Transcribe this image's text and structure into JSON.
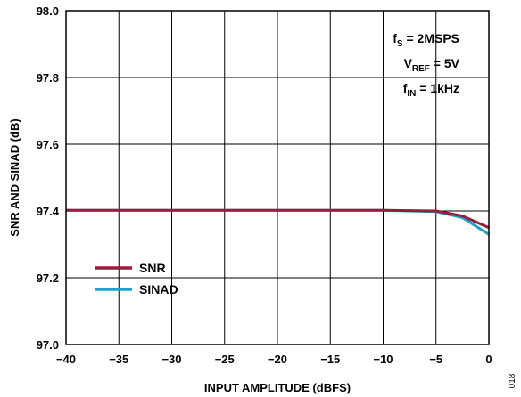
{
  "chart_data": {
    "type": "line",
    "xlabel": "INPUT AMPLITUDE (dBFS)",
    "ylabel": "SNR AND SINAD (dB)",
    "xlim": [
      -40,
      0
    ],
    "ylim": [
      97.0,
      98.0
    ],
    "x_ticks": [
      "−40",
      "−35",
      "−30",
      "−25",
      "−20",
      "−15",
      "−10",
      "−5",
      "0"
    ],
    "y_ticks": [
      "98.0",
      "97.8",
      "97.6",
      "97.4",
      "97.2",
      "97.0"
    ],
    "grid": true,
    "legend_position": "bottom-left",
    "annotations": [
      {
        "main": "f",
        "sub": "S",
        "rest": " = 2MSPS"
      },
      {
        "main": "V",
        "sub": "REF",
        "rest": " = 5V"
      },
      {
        "main": "f",
        "sub": "IN",
        "rest": " = 1kHz"
      }
    ],
    "figure_id": "018",
    "series": [
      {
        "name": "SNR",
        "color": "#9b1b3b",
        "x": [
          -40,
          -35,
          -30,
          -25,
          -20,
          -15,
          -10,
          -5,
          -2.5,
          0
        ],
        "y": [
          97.402,
          97.402,
          97.402,
          97.402,
          97.402,
          97.402,
          97.402,
          97.4,
          97.385,
          97.35
        ]
      },
      {
        "name": "SINAD",
        "color": "#1ba3c9",
        "x": [
          -40,
          -35,
          -30,
          -25,
          -20,
          -15,
          -10,
          -5,
          -2.5,
          0
        ],
        "y": [
          97.402,
          97.402,
          97.402,
          97.402,
          97.402,
          97.402,
          97.402,
          97.398,
          97.38,
          97.33
        ]
      }
    ]
  }
}
